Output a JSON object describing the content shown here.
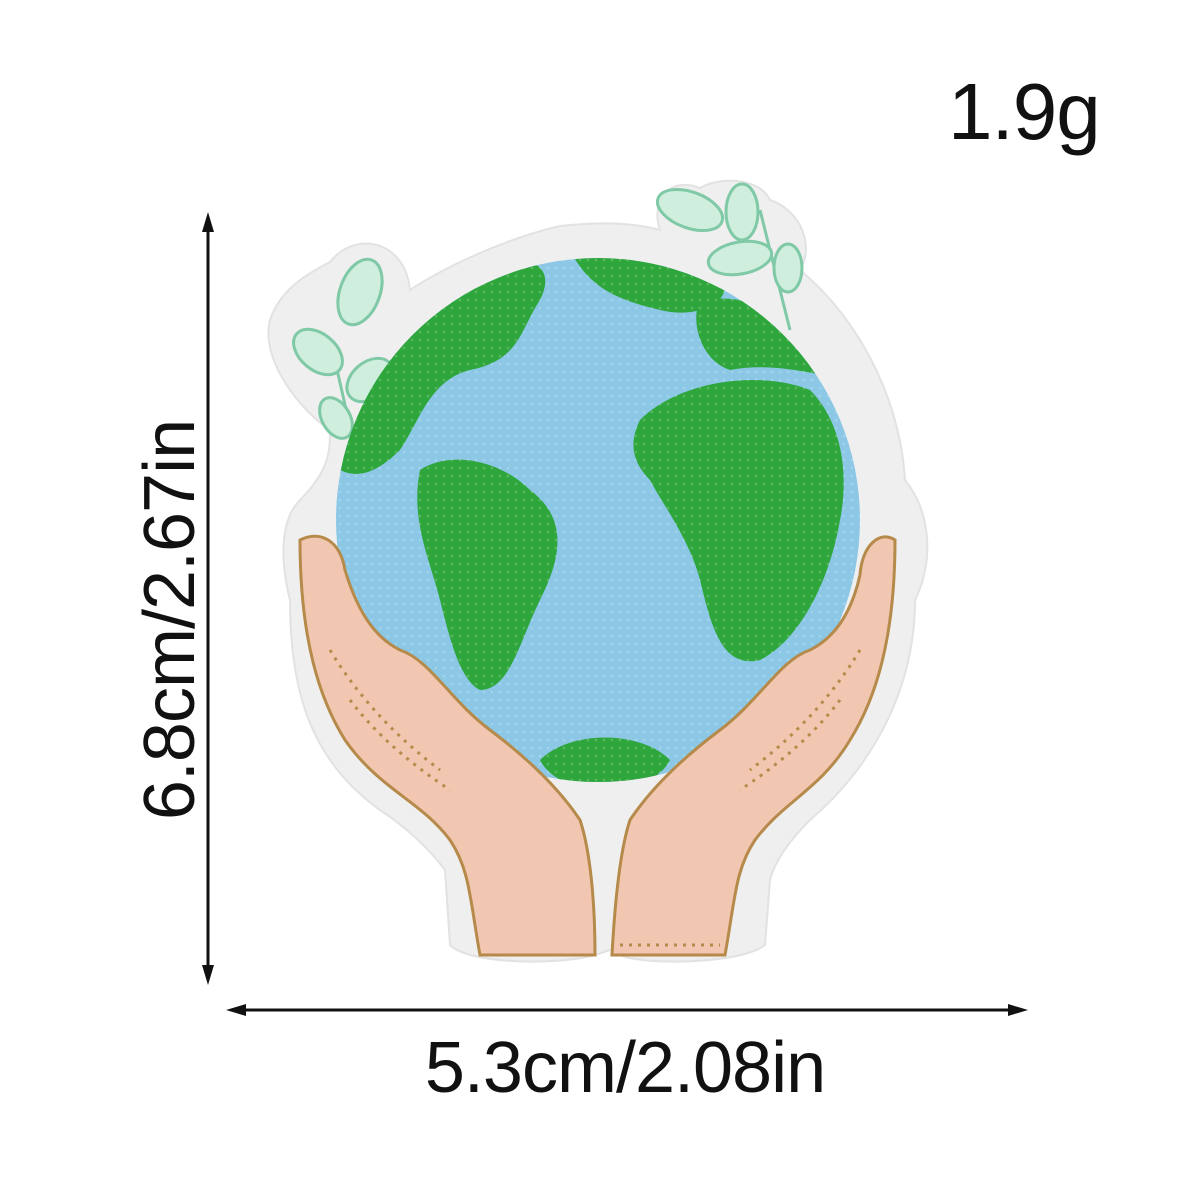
{
  "product": {
    "weight": "1.9g",
    "height_dimension": "6.8cm/2.67in",
    "width_dimension": "5.3cm/2.08in"
  },
  "image": {
    "icon": "earth-in-hands-embroidered-patch",
    "colors": {
      "felt": "#eeeeee",
      "ocean": "#8cc8e6",
      "land": "#2fa63c",
      "hands": "#f2c7b1",
      "stitching": "#b58a4a",
      "leaves": "#cdeedd"
    }
  }
}
